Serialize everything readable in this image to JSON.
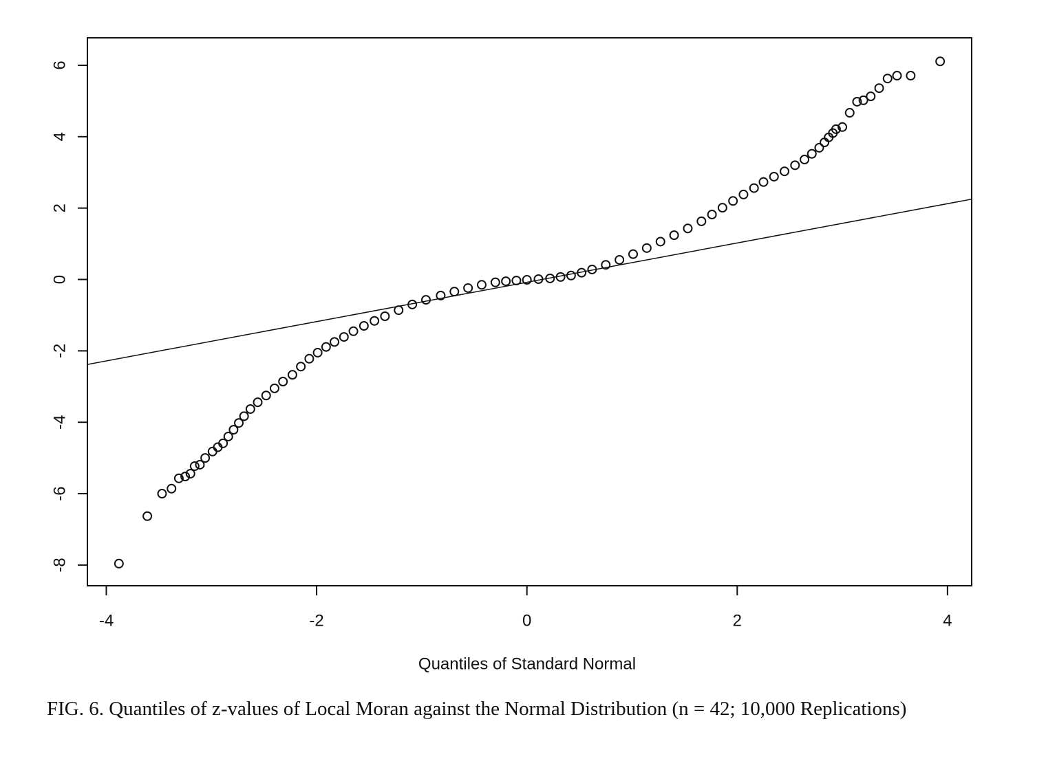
{
  "chart_data": {
    "type": "scatter",
    "xlabel": "Quantiles of Standard Normal",
    "caption": "FIG. 6. Quantiles of z-values of Local Moran against the Normal Distribution (n = 42; 10,000 Replications)",
    "color": "#111111",
    "xlim": [
      -4.18,
      4.23
    ],
    "ylim": [
      -8.58,
      6.77
    ],
    "xticks": [
      -4,
      -2,
      0,
      2,
      4
    ],
    "yticks": [
      -8,
      -6,
      -4,
      -2,
      0,
      2,
      4,
      6
    ],
    "x": [
      -3.88,
      -3.61,
      -3.47,
      -3.38,
      -3.31,
      -3.25,
      -3.2,
      -3.16,
      -3.11,
      -3.06,
      -2.99,
      -2.94,
      -2.89,
      -2.84,
      -2.79,
      -2.74,
      -2.69,
      -2.63,
      -2.56,
      -2.48,
      -2.4,
      -2.32,
      -2.23,
      -2.15,
      -2.07,
      -1.99,
      -1.91,
      -1.83,
      -1.74,
      -1.65,
      -1.55,
      -1.45,
      -1.35,
      -1.22,
      -1.09,
      -0.96,
      -0.82,
      -0.69,
      -0.56,
      -0.43,
      -0.3,
      -0.2,
      -0.1,
      0,
      0.11,
      0.22,
      0.32,
      0.42,
      0.52,
      0.62,
      0.75,
      0.88,
      1.01,
      1.14,
      1.27,
      1.4,
      1.53,
      1.66,
      1.76,
      1.86,
      1.96,
      2.06,
      2.16,
      2.25,
      2.35,
      2.45,
      2.55,
      2.64,
      2.71,
      2.78,
      2.83,
      2.87,
      2.91,
      2.94,
      3.0,
      3.07,
      3.14,
      3.2,
      3.27,
      3.35,
      3.43,
      3.52,
      3.65,
      3.93
    ],
    "values": [
      -7.96,
      -6.63,
      -6.0,
      -5.86,
      -5.57,
      -5.52,
      -5.44,
      -5.23,
      -5.19,
      -5.0,
      -4.82,
      -4.7,
      -4.59,
      -4.4,
      -4.21,
      -4.02,
      -3.83,
      -3.63,
      -3.44,
      -3.25,
      -3.05,
      -2.86,
      -2.67,
      -2.44,
      -2.22,
      -2.05,
      -1.89,
      -1.75,
      -1.61,
      -1.45,
      -1.3,
      -1.16,
      -1.03,
      -0.86,
      -0.7,
      -0.57,
      -0.45,
      -0.34,
      -0.24,
      -0.15,
      -0.08,
      -0.05,
      -0.03,
      -0.01,
      0.01,
      0.03,
      0.07,
      0.11,
      0.19,
      0.28,
      0.41,
      0.55,
      0.71,
      0.88,
      1.06,
      1.24,
      1.43,
      1.63,
      1.82,
      2.01,
      2.2,
      2.38,
      2.56,
      2.73,
      2.88,
      3.03,
      3.2,
      3.36,
      3.52,
      3.69,
      3.84,
      3.98,
      4.1,
      4.21,
      4.27,
      4.67,
      4.98,
      5.02,
      5.13,
      5.36,
      5.63,
      5.71,
      5.71,
      6.11
    ],
    "reference_line": {
      "x": [
        -4.18,
        4.23
      ],
      "values": [
        -2.38,
        2.25
      ]
    }
  }
}
